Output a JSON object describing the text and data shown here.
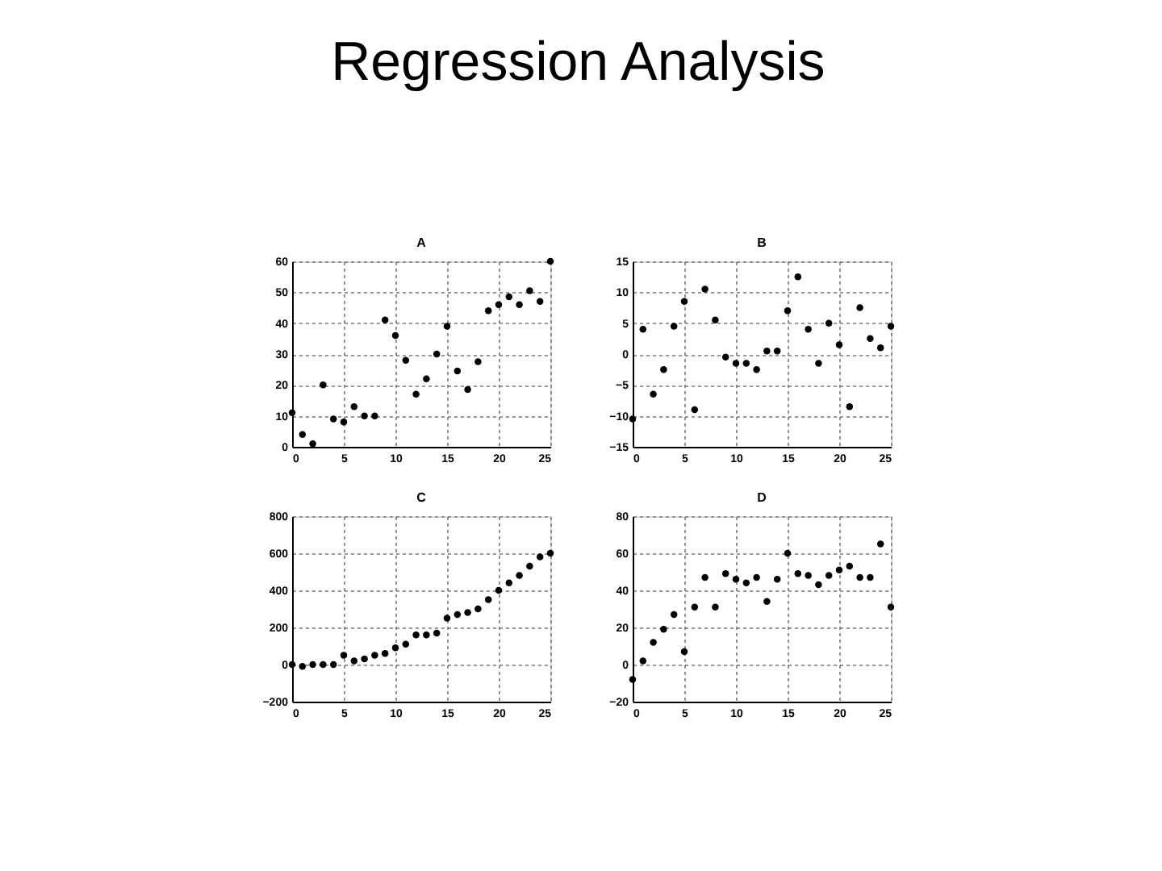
{
  "chart_data": [
    {
      "type": "other",
      "title": "Regression Analysis"
    },
    {
      "type": "scatter",
      "title": "A",
      "x": [
        0,
        1,
        2,
        3,
        4,
        5,
        6,
        7,
        8,
        9,
        10,
        11,
        12,
        13,
        14,
        15,
        16,
        17,
        18,
        19,
        20,
        21,
        22,
        23,
        24,
        25
      ],
      "values": [
        11,
        4,
        1,
        20,
        9,
        8,
        13,
        10,
        10,
        41,
        36,
        28,
        17,
        22,
        30,
        39,
        24.5,
        18.5,
        27.5,
        44,
        46,
        48.5,
        46,
        50.5,
        47,
        60
      ],
      "color": "#000000",
      "marker": "circle",
      "xlim": [
        0,
        25
      ],
      "xticks": [
        0,
        5,
        10,
        15,
        20,
        25
      ],
      "ylim": [
        0,
        60
      ],
      "yticks": [
        0,
        10,
        20,
        30,
        40,
        50,
        60
      ],
      "grid": true
    },
    {
      "type": "scatter",
      "title": "B",
      "x": [
        0,
        1,
        2,
        3,
        4,
        5,
        6,
        7,
        8,
        9,
        10,
        11,
        12,
        13,
        14,
        15,
        16,
        17,
        18,
        19,
        20,
        21,
        22,
        23,
        24,
        25
      ],
      "values": [
        -10.5,
        4,
        -6.5,
        -2.5,
        4.5,
        8.5,
        -9,
        10.5,
        5.5,
        -0.5,
        -1.5,
        -1.5,
        -2.5,
        0.5,
        0.5,
        7,
        12.5,
        4,
        -1.5,
        5,
        1.5,
        -8.5,
        7.5,
        2.5,
        1,
        4.5
      ],
      "color": "#000000",
      "marker": "circle",
      "xlim": [
        0,
        25
      ],
      "xticks": [
        0,
        5,
        10,
        15,
        20,
        25
      ],
      "ylim": [
        -15,
        15
      ],
      "yticks": [
        -15,
        -10,
        -5,
        0,
        5,
        10,
        15
      ],
      "grid": true
    },
    {
      "type": "scatter",
      "title": "C",
      "x": [
        0,
        1,
        2,
        3,
        4,
        5,
        6,
        7,
        8,
        9,
        10,
        11,
        12,
        13,
        14,
        15,
        16,
        17,
        18,
        19,
        20,
        21,
        22,
        23,
        24,
        25
      ],
      "values": [
        0,
        -10,
        0,
        0,
        0,
        50,
        20,
        30,
        50,
        60,
        90,
        110,
        160,
        160,
        170,
        250,
        270,
        280,
        300,
        350,
        400,
        440,
        480,
        530,
        580,
        600
      ],
      "color": "#000000",
      "marker": "circle",
      "xlim": [
        0,
        25
      ],
      "xticks": [
        0,
        5,
        10,
        15,
        20,
        25
      ],
      "ylim": [
        -200,
        800
      ],
      "yticks": [
        -200,
        0,
        200,
        400,
        600,
        800
      ],
      "grid": true
    },
    {
      "type": "scatter",
      "title": "D",
      "x": [
        0,
        1,
        2,
        3,
        4,
        5,
        6,
        7,
        8,
        9,
        10,
        11,
        12,
        13,
        14,
        15,
        16,
        17,
        18,
        19,
        20,
        21,
        22,
        23,
        24,
        25
      ],
      "values": [
        -8,
        2,
        12,
        19,
        27,
        7,
        31,
        47,
        31,
        49,
        46,
        44,
        47,
        34,
        46,
        60,
        49,
        48,
        43,
        48,
        51,
        53,
        47,
        47,
        65,
        31
      ],
      "color": "#000000",
      "marker": "circle",
      "xlim": [
        0,
        25
      ],
      "xticks": [
        0,
        5,
        10,
        15,
        20,
        25
      ],
      "ylim": [
        -20,
        80
      ],
      "yticks": [
        -20,
        0,
        20,
        40,
        60,
        80
      ],
      "grid": true
    }
  ]
}
